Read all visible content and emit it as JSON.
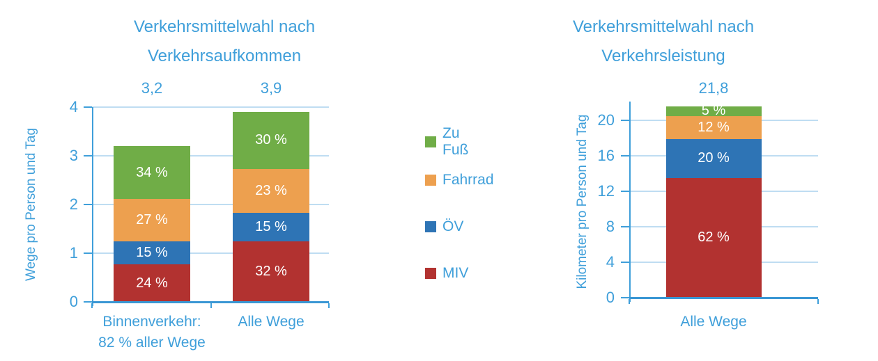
{
  "colors": {
    "zu_fuss": "#70AD47",
    "fahrrad": "#EDA04F",
    "oev": "#2E74B5",
    "miv": "#B23230",
    "text_blue": "#3F9FDA",
    "grid_blue": "#BFDDF2",
    "axis_blue": "#3F9FDA",
    "baseline_blue": "#3A97D4",
    "bar_label_white": "#FFFFFF"
  },
  "legend": {
    "items": [
      {
        "id": "zu_fuss",
        "label": "Zu Fuß"
      },
      {
        "id": "fahrrad",
        "label": "Fahrrad"
      },
      {
        "id": "oev",
        "label": "ÖV"
      },
      {
        "id": "miv",
        "label": "MIV"
      }
    ]
  },
  "chart_data": [
    {
      "type": "bar",
      "stacked": true,
      "title_lines": [
        "Verkehrsmittelwahl nach",
        "Verkehrsaufkommen"
      ],
      "ylabel": "Wege pro Person und Tag",
      "yticks": [
        0,
        1,
        2,
        3,
        4
      ],
      "ylim": [
        0,
        4
      ],
      "grid": true,
      "legend_position": "right-center-shared",
      "categories": [
        {
          "label_lines": [
            "Binnenverkehr:",
            "82 % aller Wege"
          ],
          "total": 3.2,
          "total_label": "3,2",
          "segments": [
            {
              "id": "miv",
              "name": "MIV",
              "pct": 24,
              "label": "24 %"
            },
            {
              "id": "oev",
              "name": "ÖV",
              "pct": 15,
              "label": "15 %"
            },
            {
              "id": "fahrrad",
              "name": "Fahrrad",
              "pct": 27,
              "label": "27 %"
            },
            {
              "id": "zu_fuss",
              "name": "Zu Fuß",
              "pct": 34,
              "label": "34 %"
            }
          ]
        },
        {
          "label_lines": [
            "Alle Wege"
          ],
          "total": 3.9,
          "total_label": "3,9",
          "segments": [
            {
              "id": "miv",
              "name": "MIV",
              "pct": 32,
              "label": "32 %"
            },
            {
              "id": "oev",
              "name": "ÖV",
              "pct": 15,
              "label": "15 %"
            },
            {
              "id": "fahrrad",
              "name": "Fahrrad",
              "pct": 23,
              "label": "23 %"
            },
            {
              "id": "zu_fuss",
              "name": "Zu Fuß",
              "pct": 30,
              "label": "30 %"
            }
          ]
        }
      ]
    },
    {
      "type": "bar",
      "stacked": true,
      "title_lines": [
        "Verkehrsmittelwahl nach",
        "Verkehrsleistung"
      ],
      "ylabel": "Kilometer pro Person und Tag",
      "yticks": [
        0,
        4,
        8,
        12,
        16,
        20
      ],
      "ylim": [
        0,
        20
      ],
      "grid": true,
      "categories": [
        {
          "label_lines": [
            "Alle Wege"
          ],
          "total": 21.8,
          "total_label": "21,8",
          "segments": [
            {
              "id": "miv",
              "name": "MIV",
              "pct": 62,
              "label": "62 %"
            },
            {
              "id": "oev",
              "name": "ÖV",
              "pct": 20,
              "label": "20 %"
            },
            {
              "id": "fahrrad",
              "name": "Fahrrad",
              "pct": 12,
              "label": "12 %"
            },
            {
              "id": "zu_fuss",
              "name": "Zu Fuß",
              "pct": 5,
              "label": "5 %"
            }
          ]
        }
      ]
    }
  ]
}
